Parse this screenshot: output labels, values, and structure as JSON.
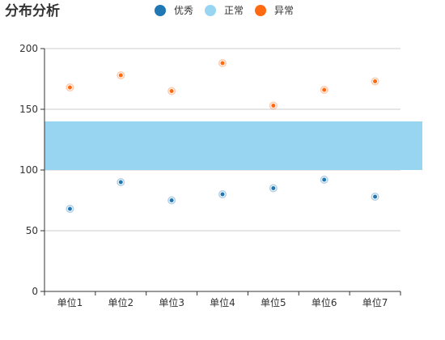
{
  "chart_data": {
    "type": "scatter",
    "title": "分布分析",
    "categories": [
      "单位1",
      "单位2",
      "单位3",
      "单位4",
      "单位5",
      "单位6",
      "单位7"
    ],
    "ylim": [
      0,
      200
    ],
    "yticks": [
      0,
      50,
      100,
      150,
      200
    ],
    "grid": true,
    "legend_position": "top-center",
    "series": [
      {
        "name": "优秀",
        "color": "#1f77b4",
        "values": [
          68,
          90,
          75,
          80,
          85,
          92,
          78
        ]
      },
      {
        "name": "正常",
        "color": "#98d5f1",
        "band": [
          100,
          140
        ]
      },
      {
        "name": "异常",
        "color": "#ff6a10",
        "values": [
          168,
          178,
          165,
          188,
          153,
          166,
          173
        ]
      }
    ]
  }
}
